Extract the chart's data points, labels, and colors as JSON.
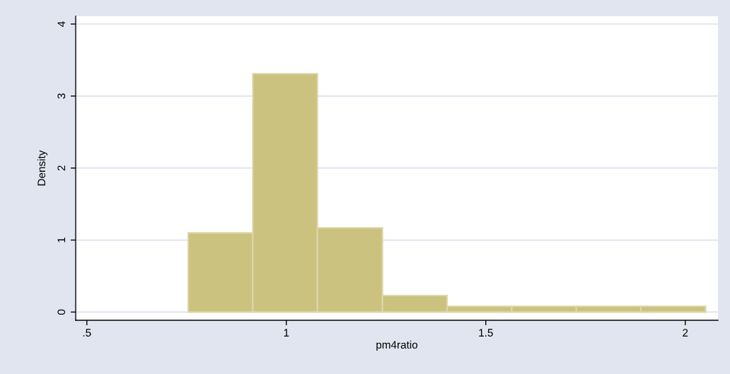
{
  "chart_data": {
    "type": "histogram",
    "xlabel": "pm4ratio",
    "ylabel": "Density",
    "bins": [
      0.754,
      0.916,
      1.078,
      1.241,
      1.403,
      1.565,
      1.727,
      1.889,
      2.051
    ],
    "values": [
      1.1,
      3.31,
      1.17,
      0.23,
      0.08,
      0.08,
      0.08,
      0.08
    ],
    "color": "#cac27e",
    "xlim": [
      0.472,
      2.082
    ],
    "ylim": [
      -0.114,
      4.108
    ],
    "xticks": [
      {
        "value": 0.5,
        "label": ".5"
      },
      1,
      1.5,
      2
    ],
    "yticks": [
      0,
      1,
      2,
      3,
      4
    ],
    "grid": "y"
  }
}
